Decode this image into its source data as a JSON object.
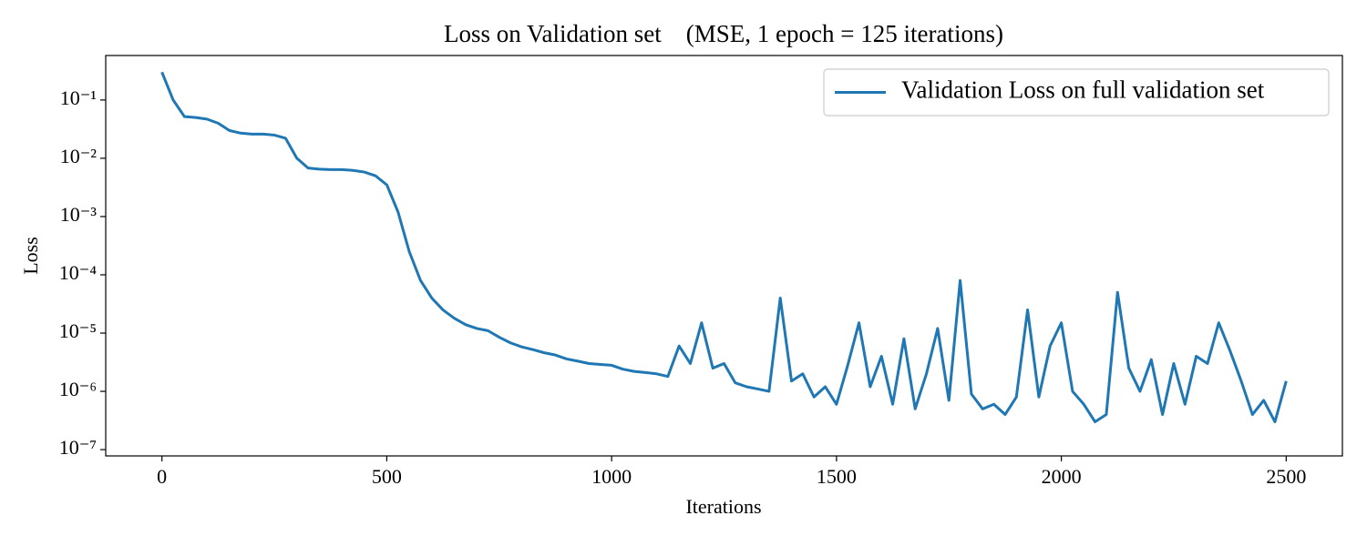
{
  "chart_data": {
    "type": "line",
    "title": "Loss on Validation set    (MSE, 1 epoch = 125 iterations)",
    "xlabel": "Iterations",
    "ylabel": "Loss",
    "xscale": "linear",
    "yscale": "log",
    "xlim": [
      -125,
      2625
    ],
    "ylim": [
      7.8e-08,
      0.58
    ],
    "xticks": [
      0,
      500,
      1000,
      1500,
      2000,
      2500
    ],
    "yticks": [
      {
        "value": 1e-07,
        "label": "10⁻⁷"
      },
      {
        "value": 1e-06,
        "label": "10⁻⁶"
      },
      {
        "value": 1e-05,
        "label": "10⁻⁵"
      },
      {
        "value": 0.0001,
        "label": "10⁻⁴"
      },
      {
        "value": 0.001,
        "label": "10⁻³"
      },
      {
        "value": 0.01,
        "label": "10⁻²"
      },
      {
        "value": 0.1,
        "label": "10⁻¹"
      }
    ],
    "grid": false,
    "legend": "upper right",
    "x": [
      0,
      25,
      50,
      75,
      100,
      125,
      150,
      175,
      200,
      225,
      250,
      275,
      300,
      325,
      350,
      375,
      400,
      425,
      450,
      475,
      500,
      525,
      550,
      575,
      600,
      625,
      650,
      675,
      700,
      725,
      750,
      775,
      800,
      825,
      850,
      875,
      900,
      925,
      950,
      975,
      1000,
      1025,
      1050,
      1075,
      1100,
      1125,
      1150,
      1175,
      1200,
      1225,
      1250,
      1275,
      1300,
      1325,
      1350,
      1375,
      1400,
      1425,
      1450,
      1475,
      1500,
      1525,
      1550,
      1575,
      1600,
      1625,
      1650,
      1675,
      1700,
      1725,
      1750,
      1775,
      1800,
      1825,
      1850,
      1875,
      1900,
      1925,
      1950,
      1975,
      2000,
      2025,
      2050,
      2075,
      2100,
      2125,
      2150,
      2175,
      2200,
      2225,
      2250,
      2275,
      2300,
      2325,
      2350,
      2375,
      2400,
      2425,
      2450,
      2475,
      2500
    ],
    "series": [
      {
        "name": "Validation Loss on full validation set",
        "color": "#1f77b4",
        "values": [
          0.3,
          0.1,
          0.052,
          0.05,
          0.047,
          0.04,
          0.03,
          0.027,
          0.026,
          0.026,
          0.025,
          0.022,
          0.01,
          0.0068,
          0.0065,
          0.0064,
          0.0064,
          0.0062,
          0.0058,
          0.005,
          0.0035,
          0.0012,
          0.00025,
          8e-05,
          4e-05,
          2.5e-05,
          1.8e-05,
          1.4e-05,
          1.2e-05,
          1.1e-05,
          8.5e-06,
          6.8e-06,
          5.8e-06,
          5.2e-06,
          4.6e-06,
          4.2e-06,
          3.6e-06,
          3.3e-06,
          3e-06,
          2.9e-06,
          2.8e-06,
          2.4e-06,
          2.2e-06,
          2.1e-06,
          2e-06,
          1.8e-06,
          6e-06,
          3e-06,
          1.5e-05,
          2.5e-06,
          3e-06,
          1.4e-06,
          1.2e-06,
          1.1e-06,
          1e-06,
          4e-05,
          1.5e-06,
          2e-06,
          8e-07,
          1.2e-06,
          6e-07,
          2.8e-06,
          1.5e-05,
          1.2e-06,
          4e-06,
          6e-07,
          8e-06,
          5e-07,
          2e-06,
          1.2e-05,
          7e-07,
          8e-05,
          9e-07,
          5e-07,
          6e-07,
          4e-07,
          8e-07,
          2.5e-05,
          8e-07,
          6e-06,
          1.5e-05,
          1e-06,
          6e-07,
          3e-07,
          4e-07,
          5e-05,
          2.5e-06,
          1e-06,
          3.5e-06,
          4e-07,
          3e-06,
          6e-07,
          4e-06,
          3e-06,
          1.5e-05,
          5e-06,
          1.5e-06,
          4e-07,
          7e-07,
          3e-07,
          1.5e-06
        ]
      }
    ]
  }
}
